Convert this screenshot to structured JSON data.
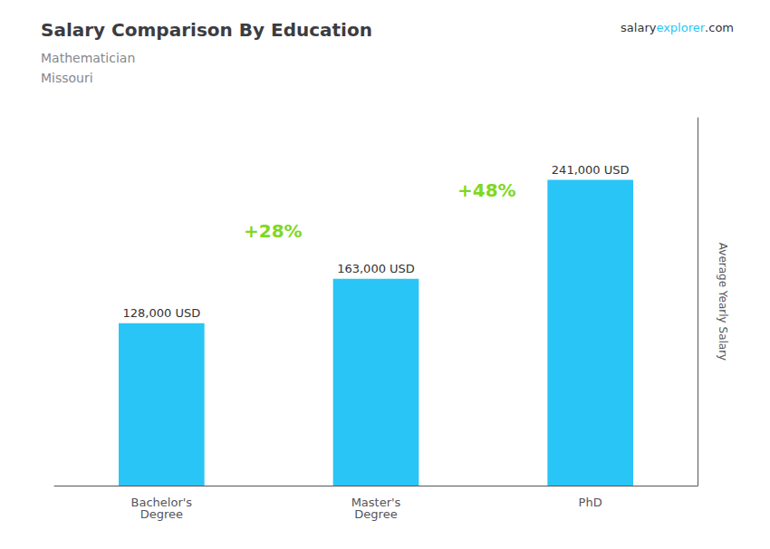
{
  "chart_data": {
    "type": "bar",
    "title": "Salary Comparison By Education",
    "subtitle": [
      "Mathematician",
      "Missouri"
    ],
    "ylabel": "Average Yearly Salary",
    "categories": [
      "Bachelor's\nDegree",
      "Master's\nDegree",
      "PhD"
    ],
    "values": [
      128000,
      163000,
      241000
    ],
    "value_labels": [
      "128,000 USD",
      "163,000 USD",
      "241,000 USD"
    ],
    "data_labels": true,
    "color": "#29C5F6",
    "ylim": [
      0,
      290000
    ],
    "tick_labels": "x",
    "grid": false,
    "annotations": [
      {
        "text": "+28%",
        "color": "#7FD820"
      },
      {
        "text": "+48%",
        "color": "#7FD820"
      },
      {
        "text": "salary"
      },
      {
        "text": "explorer",
        "color": "#29C5F6"
      },
      {
        "text": ".com"
      }
    ]
  }
}
